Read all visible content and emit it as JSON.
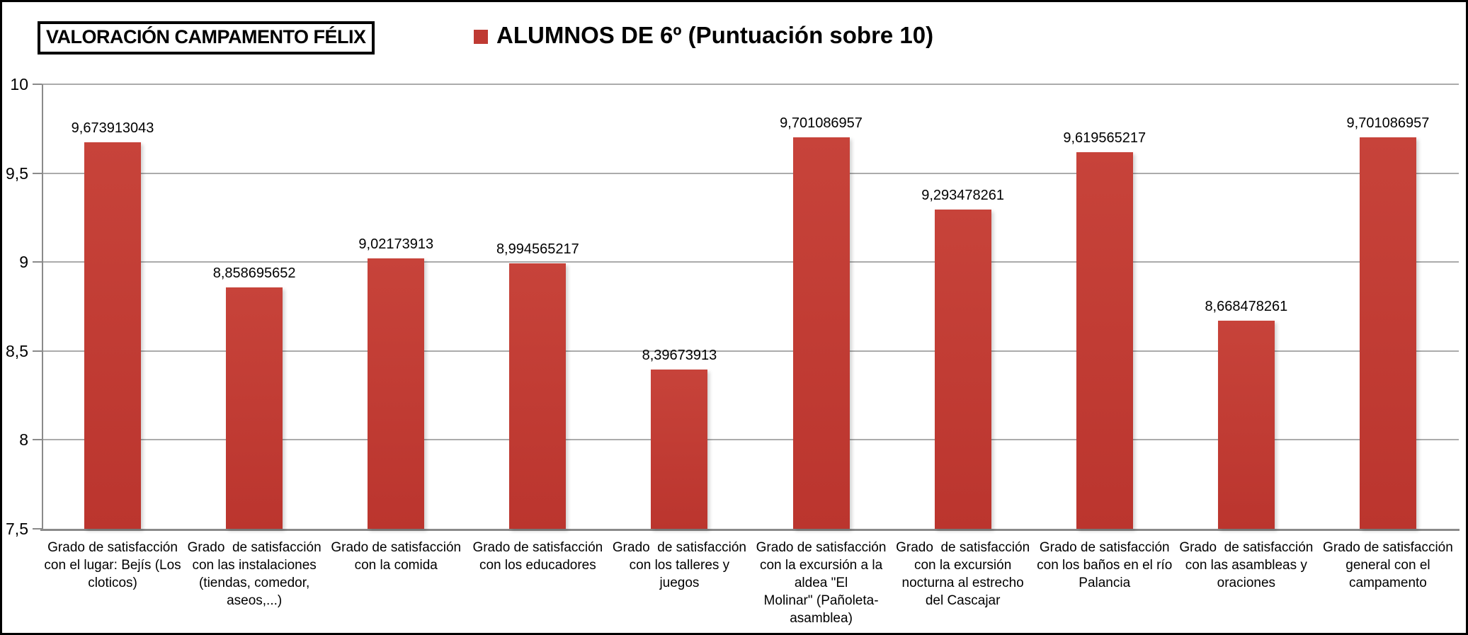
{
  "header": {
    "title": "VALORACIÓN CAMPAMENTO FÉLIX",
    "legend": {
      "marker_color": "#bf3a33",
      "label": "ALUMNOS DE 6º (Puntuación sobre 10)"
    }
  },
  "colors": {
    "bar_top": "#c7433a",
    "bar_bottom": "#bb352e",
    "gridline": "#ababab",
    "axis": "#8a8a8a",
    "text": "#000000"
  },
  "chart_data": {
    "type": "bar",
    "title": "ALUMNOS DE 6º (Puntuación sobre 10)",
    "xlabel": "",
    "ylabel": "",
    "ylim": [
      7.5,
      10
    ],
    "ytick_values": [
      7.5,
      8,
      8.5,
      9,
      9.5,
      10
    ],
    "ytick_labels": [
      "7,5",
      "8",
      "8,5",
      "9",
      "9,5",
      "10"
    ],
    "grid": true,
    "legend_position": "top",
    "bar_color": "#c23b33",
    "categories": [
      "Grado de satisfacción\ncon el lugar: Bejís (Los\ncloticos)",
      "Grado  de satisfacción\ncon las instalaciones\n(tiendas, comedor,\naseos,...)",
      "Grado de satisfacción\ncon la comida",
      "Grado de satisfacción\ncon los educadores",
      "Grado  de satisfacción\ncon los talleres y\njuegos",
      "Grado de satisfacción\ncon la excursión a la\naldea \"El\nMolinar\" (Pañoleta-\nasamblea)",
      "Grado  de satisfacción\ncon la excursión\nnocturna al estrecho\ndel Cascajar",
      "Grado de satisfacción\ncon los baños en el río\nPalancia",
      "Grado  de satisfacción\ncon las asambleas y\noraciones",
      "Grado de satisfacción\ngeneral con el\ncampamento"
    ],
    "values": [
      9.673913043,
      8.858695652,
      9.02173913,
      8.994565217,
      8.39673913,
      9.701086957,
      9.293478261,
      9.619565217,
      8.668478261,
      9.701086957
    ],
    "value_labels": [
      "9,673913043",
      "8,858695652",
      "9,02173913",
      "8,994565217",
      "8,39673913",
      "9,701086957",
      "9,293478261",
      "9,619565217",
      "8,668478261",
      "9,701086957"
    ]
  }
}
